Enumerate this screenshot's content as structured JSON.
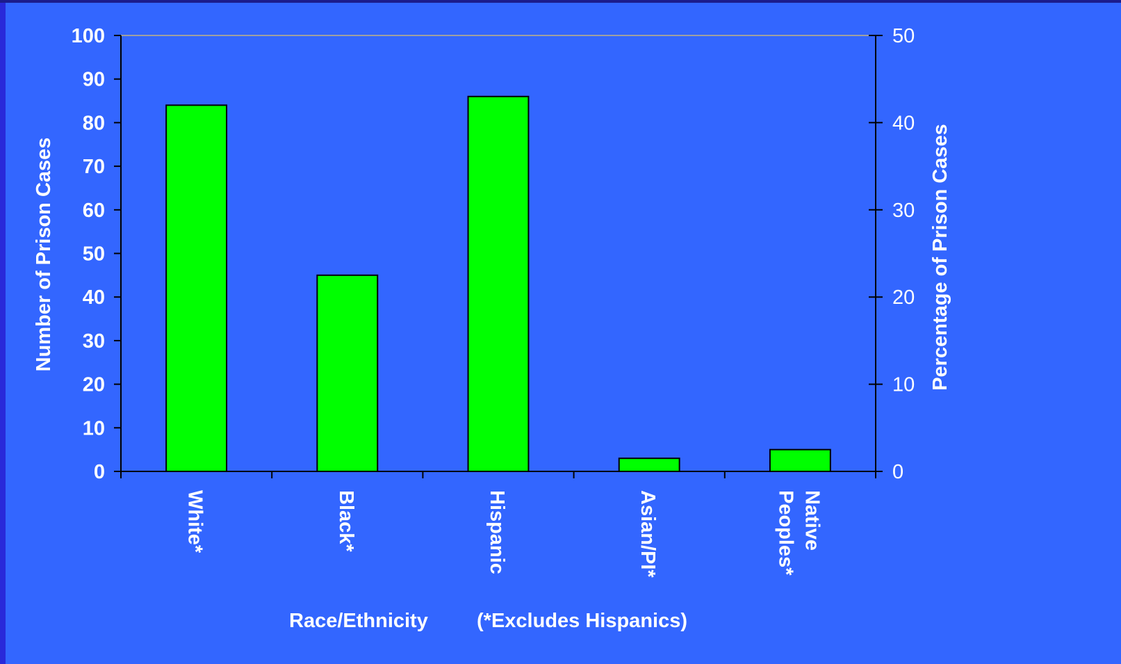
{
  "chart_data": {
    "type": "bar",
    "title": "",
    "categories": [
      "White*",
      "Black*",
      "Hispanic",
      "Asian/PI*",
      "Native Peoples*"
    ],
    "category_lines": [
      [
        "White*"
      ],
      [
        "Black*"
      ],
      [
        "Hispanic"
      ],
      [
        "Asian/PI*"
      ],
      [
        "Native",
        "Peoples*"
      ]
    ],
    "values": [
      84,
      45,
      86,
      3,
      5
    ],
    "xlabel": "Race/Ethnicity",
    "xlabel_note": "(*Excludes Hispanics)",
    "ylabel": "Number of Prison Cases",
    "ylabel_right": "Percentage of Prison Cases",
    "ylim": [
      0,
      100
    ],
    "ylim_right": [
      0,
      50
    ],
    "yticks": [
      0,
      10,
      20,
      30,
      40,
      50,
      60,
      70,
      80,
      90,
      100
    ],
    "yticks_right": [
      0,
      10,
      20,
      30,
      40,
      50
    ],
    "grid": false,
    "legend": "none",
    "colors": {
      "bar": "#00ff00",
      "bar_outline": "#000000",
      "background": "#3366ff",
      "text": "#ffffff",
      "axis": "#000000"
    }
  }
}
